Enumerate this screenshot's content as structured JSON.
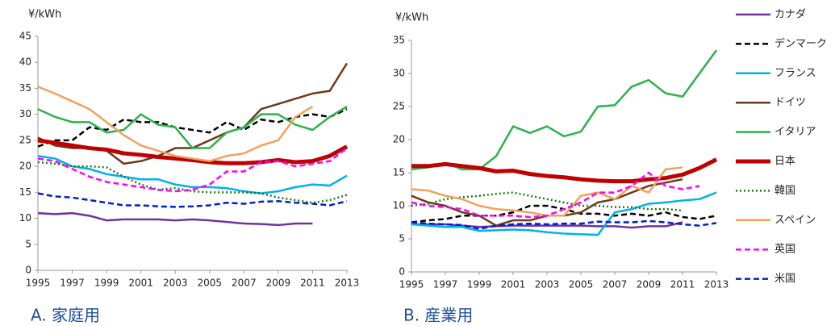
{
  "chart_data": [
    {
      "type": "line",
      "title": "A. 家庭用",
      "y_label": "¥/kWh",
      "x": [
        1995,
        1996,
        1997,
        1998,
        1999,
        2000,
        2001,
        2002,
        2003,
        2004,
        2005,
        2006,
        2007,
        2008,
        2009,
        2010,
        2011,
        2012,
        2013
      ],
      "xlim": [
        1995,
        2013
      ],
      "xticks": [
        1995,
        1997,
        1999,
        2001,
        2003,
        2005,
        2007,
        2009,
        2011,
        2013
      ],
      "ylim": [
        0,
        45
      ],
      "yticks": [
        0,
        5,
        10,
        15,
        20,
        25,
        30,
        35,
        40,
        45
      ],
      "series": [
        {
          "name": "カナダ",
          "color": "#7030a0",
          "dash": "solid",
          "width": 2.5,
          "values": [
            11,
            10.8,
            11,
            10.5,
            9.6,
            9.8,
            9.8,
            9.8,
            9.6,
            9.8,
            9.6,
            9.3,
            9.0,
            8.9,
            8.7,
            9.0,
            9.0,
            null,
            null
          ]
        },
        {
          "name": "デンマーク",
          "color": "#000000",
          "dash": "dashed",
          "width": 2.5,
          "values": [
            23.8,
            25,
            25,
            27.5,
            27,
            29,
            28.5,
            28.5,
            27.5,
            27,
            26.5,
            28.5,
            27,
            29,
            28.5,
            29.5,
            30,
            29.5,
            31
          ]
        },
        {
          "name": "フランス",
          "color": "#00b0f0",
          "dash": "solid",
          "width": 2.5,
          "values": [
            22,
            21.5,
            20,
            19.5,
            18.5,
            18,
            17.5,
            17.5,
            16.5,
            16,
            16,
            15.8,
            15.2,
            14.8,
            15.2,
            16,
            16.5,
            16.3,
            18.2
          ]
        },
        {
          "name": "ドイツ",
          "color": "#6b3a1a",
          "dash": "solid",
          "width": 2.5,
          "values": [
            25.5,
            24,
            23.5,
            23.5,
            23,
            20.5,
            21,
            22,
            23.5,
            23.5,
            25,
            26.5,
            27.5,
            31,
            32,
            33,
            34,
            34.5,
            39.8
          ]
        },
        {
          "name": "イタリア",
          "color": "#2bb24c",
          "dash": "solid",
          "width": 2.5,
          "values": [
            31,
            29.5,
            28.5,
            28.5,
            26.5,
            27,
            30,
            28,
            27.5,
            23.5,
            23.5,
            26.5,
            27.5,
            30,
            30,
            28,
            27,
            29.5,
            31.5
          ]
        },
        {
          "name": "日本",
          "color": "#c00000",
          "dash": "solid",
          "width": 5,
          "values": [
            25,
            24.5,
            24,
            23.5,
            23.2,
            22.5,
            22.2,
            21.8,
            21.5,
            21.2,
            20.8,
            20.6,
            20.6,
            20.8,
            21.2,
            20.8,
            21,
            22,
            23.8
          ]
        },
        {
          "name": "韓国",
          "color": "#1a7a1a",
          "dash": "dotted",
          "width": 2.5,
          "values": [
            20.8,
            20.5,
            20,
            20,
            19.8,
            18,
            16.5,
            15.5,
            15.8,
            15.2,
            15,
            15,
            15,
            14.8,
            14,
            13.5,
            13,
            13.5,
            14.5
          ]
        },
        {
          "name": "スペイン",
          "color": "#f4a05a",
          "dash": "solid",
          "width": 2.5,
          "values": [
            35.3,
            34,
            32.5,
            31,
            28.5,
            26,
            24,
            23,
            22,
            21.5,
            21,
            22,
            22.5,
            24,
            25,
            29.5,
            31.5,
            null,
            null
          ]
        },
        {
          "name": "英国",
          "color": "#ff00ff",
          "dash": "dashed",
          "width": 2.5,
          "values": [
            21.5,
            21,
            19.5,
            18,
            17,
            16.5,
            16,
            15.5,
            15.2,
            15.5,
            16.5,
            19,
            19,
            20.8,
            21,
            20,
            20.5,
            21,
            23.5
          ]
        },
        {
          "name": "米国",
          "color": "#0020c8",
          "dash": "dashed",
          "width": 2.5,
          "values": [
            14.8,
            14.2,
            14,
            13.5,
            13,
            12.5,
            12.5,
            12.3,
            12.2,
            12.3,
            12.5,
            13,
            12.8,
            13.2,
            13.3,
            13,
            12.8,
            12.5,
            13.3
          ]
        }
      ]
    },
    {
      "type": "line",
      "title": "B. 産業用",
      "y_label": "¥/kWh",
      "x": [
        1995,
        1996,
        1997,
        1998,
        1999,
        2000,
        2001,
        2002,
        2003,
        2004,
        2005,
        2006,
        2007,
        2008,
        2009,
        2010,
        2011,
        2012,
        2013
      ],
      "xlim": [
        1995,
        2013
      ],
      "xticks": [
        1995,
        1997,
        1999,
        2001,
        2003,
        2005,
        2007,
        2009,
        2011,
        2013
      ],
      "ylim": [
        0,
        35
      ],
      "yticks": [
        0,
        5,
        10,
        15,
        20,
        25,
        30,
        35
      ],
      "series": [
        {
          "values": [
            7.2,
            7.2,
            7.2,
            7.0,
            6.8,
            6.9,
            7.0,
            7.0,
            7.0,
            7.0,
            7.0,
            6.9,
            6.9,
            6.7,
            6.9,
            6.9,
            7.5,
            null,
            null
          ]
        },
        {
          "values": [
            7.5,
            7.8,
            8,
            8.5,
            8.5,
            8.5,
            9,
            10,
            10,
            9.5,
            8.8,
            8.8,
            8.5,
            8.8,
            8.5,
            9,
            8.3,
            8,
            8.5
          ]
        },
        {
          "values": [
            7.2,
            7,
            6.8,
            6.8,
            6.2,
            6.3,
            6.4,
            6.3,
            6.0,
            5.8,
            5.7,
            5.6,
            9,
            9.5,
            10.3,
            10.5,
            10.8,
            11,
            12
          ]
        },
        {
          "values": [
            11.5,
            10.5,
            10,
            9,
            8.5,
            7,
            7.8,
            7.8,
            8.5,
            8.5,
            9,
            10.5,
            11,
            12,
            13,
            13.5,
            14,
            null,
            null
          ]
        },
        {
          "values": [
            15.5,
            15.8,
            16.5,
            15.5,
            15.5,
            17.5,
            22,
            21,
            22,
            20.5,
            21.2,
            25,
            25.2,
            28,
            29,
            27,
            26.5,
            30,
            33.5
          ]
        },
        {
          "values": [
            16,
            16,
            16.3,
            16,
            15.7,
            15.2,
            15.3,
            14.8,
            14.5,
            14.3,
            14,
            13.8,
            13.7,
            13.7,
            14,
            14.2,
            14.7,
            15.7,
            17
          ]
        },
        {
          "values": [
            10,
            10.3,
            11,
            11.3,
            11.5,
            11.8,
            12,
            11.5,
            11,
            10.5,
            10,
            10,
            9.8,
            9.8,
            9.5,
            9.5,
            9.3,
            null,
            null
          ]
        },
        {
          "values": [
            12.5,
            12.3,
            11.5,
            11,
            10,
            9.5,
            9.3,
            9,
            8.5,
            8.5,
            11.5,
            12,
            11,
            13,
            12,
            15.5,
            15.8,
            null,
            null
          ]
        },
        {
          "values": [
            10.5,
            10,
            9.8,
            9.5,
            8.5,
            8.5,
            8.5,
            8.3,
            8.5,
            9.5,
            10.5,
            12,
            12,
            13,
            15,
            13,
            12.5,
            13,
            null
          ]
        },
        {
          "values": [
            7.5,
            7.3,
            7.2,
            7.1,
            6.5,
            7.0,
            7.2,
            7.3,
            7.2,
            7.3,
            7.3,
            7.6,
            7.5,
            7.5,
            7.7,
            7.5,
            7.2,
            7.0,
            7.4
          ]
        }
      ]
    }
  ]
}
